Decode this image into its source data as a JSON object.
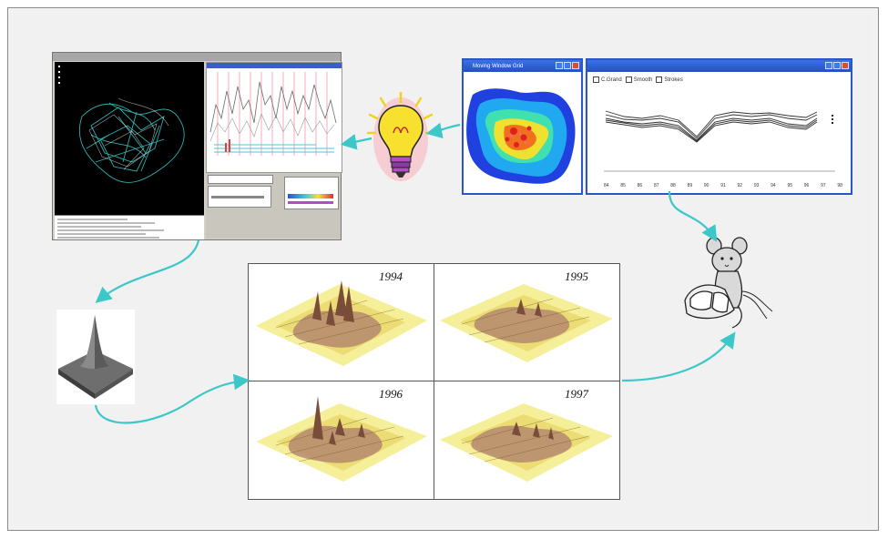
{
  "panels": {
    "grid": {
      "years": [
        "1994",
        "1995",
        "1996",
        "1997"
      ]
    },
    "heatmap_window": {
      "title": "Moving Window Grid"
    },
    "chart_window": {
      "checkboxes": [
        "C.Grand",
        "Smooth",
        "Strokes"
      ],
      "x_ticks": [
        "84",
        "85",
        "86",
        "87",
        "88",
        "89",
        "90",
        "91",
        "92",
        "93",
        "94",
        "95",
        "96",
        "97",
        "98"
      ]
    }
  },
  "colors": {
    "arrow": "#3cc7c8",
    "xp_title": "#2a56c8",
    "terrain_base": "#f3e98a",
    "terrain_peak": "#7a4d3a"
  },
  "icons": [
    "lightbulb-icon",
    "mouse-icon",
    "peak-surface-icon"
  ]
}
